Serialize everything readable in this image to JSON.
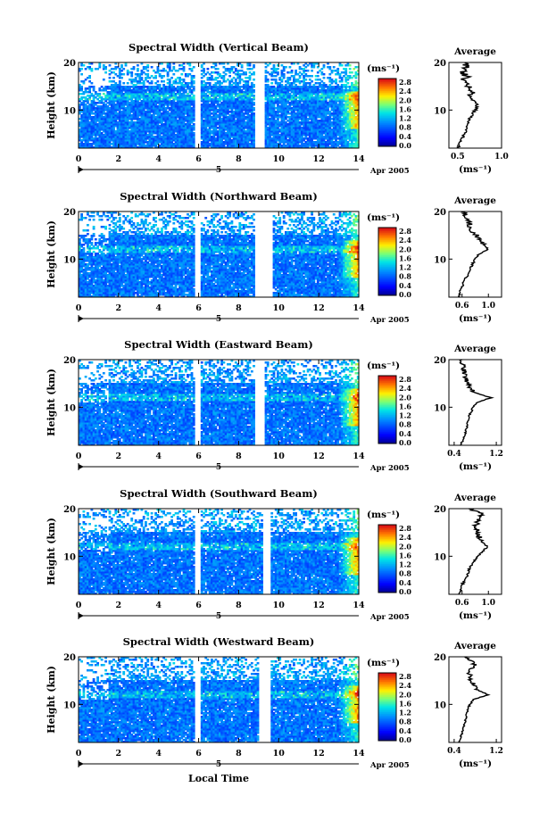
{
  "chart_data": [
    {
      "type": "heatmap",
      "title": "Spectral Width (Vertical Beam)",
      "ylabel": "Height (km)",
      "xlabel": "",
      "xlim": [
        0,
        14
      ],
      "ylim": [
        2,
        20
      ],
      "xticks": [
        "0",
        "2",
        "4",
        "6",
        "8",
        "10",
        "12",
        "14"
      ],
      "yticks": [
        "10",
        "20"
      ],
      "date_label": "Apr 2005",
      "date_marker": "5",
      "colorbar": {
        "unit": "(ms⁻¹)",
        "ticks": [
          "0.0",
          "0.4",
          "0.8",
          "1.2",
          "1.6",
          "2.0",
          "2.4",
          "2.8"
        ],
        "range": [
          0,
          3.0
        ]
      },
      "gaps": [
        [
          5.8,
          6.1
        ],
        [
          8.8,
          9.3
        ]
      ],
      "tropopause_km": 13,
      "average": {
        "title": "Average",
        "xlabel": "(ms⁻¹)",
        "xticks": [
          "0.5",
          "1.0"
        ],
        "xlim": [
          0.4,
          1.0
        ],
        "profile": [
          [
            2,
            0.5
          ],
          [
            3,
            0.52
          ],
          [
            4,
            0.55
          ],
          [
            5,
            0.58
          ],
          [
            6,
            0.6
          ],
          [
            7,
            0.62
          ],
          [
            8,
            0.63
          ],
          [
            9,
            0.66
          ],
          [
            10,
            0.7
          ],
          [
            11,
            0.72
          ],
          [
            12,
            0.68
          ],
          [
            13,
            0.64
          ],
          [
            14,
            0.66
          ],
          [
            15,
            0.62
          ],
          [
            16,
            0.56
          ],
          [
            17,
            0.6
          ],
          [
            18,
            0.55
          ],
          [
            19,
            0.6
          ],
          [
            20,
            0.58
          ]
        ]
      }
    },
    {
      "type": "heatmap",
      "title": "Spectral Width (Northward Beam)",
      "ylabel": "Height (km)",
      "xlabel": "",
      "xlim": [
        0,
        14
      ],
      "ylim": [
        2,
        20
      ],
      "xticks": [
        "0",
        "2",
        "4",
        "6",
        "8",
        "10",
        "12",
        "14"
      ],
      "yticks": [
        "10",
        "20"
      ],
      "date_label": "Apr 2005",
      "date_marker": "5",
      "colorbar": {
        "unit": "(ms⁻¹)",
        "ticks": [
          "0.0",
          "0.4",
          "0.8",
          "1.2",
          "1.6",
          "2.0",
          "2.4",
          "2.8"
        ],
        "range": [
          0,
          3.0
        ]
      },
      "gaps": [
        [
          5.8,
          6.1
        ],
        [
          8.8,
          9.7
        ]
      ],
      "tropopause_km": 12,
      "average": {
        "title": "Average",
        "xlabel": "(ms⁻¹)",
        "xticks": [
          "0.6",
          "1.0"
        ],
        "xlim": [
          0.4,
          1.2
        ],
        "profile": [
          [
            2,
            0.55
          ],
          [
            3,
            0.56
          ],
          [
            4,
            0.6
          ],
          [
            5,
            0.62
          ],
          [
            6,
            0.66
          ],
          [
            7,
            0.7
          ],
          [
            8,
            0.72
          ],
          [
            9,
            0.76
          ],
          [
            10,
            0.8
          ],
          [
            11,
            0.86
          ],
          [
            12,
            1.0
          ],
          [
            13,
            0.92
          ],
          [
            14,
            0.86
          ],
          [
            15,
            0.82
          ],
          [
            16,
            0.74
          ],
          [
            17,
            0.72
          ],
          [
            18,
            0.7
          ],
          [
            19,
            0.66
          ],
          [
            20,
            0.64
          ]
        ]
      }
    },
    {
      "type": "heatmap",
      "title": "Spectral Width (Eastward Beam)",
      "ylabel": "Height (km)",
      "xlabel": "",
      "xlim": [
        0,
        14
      ],
      "ylim": [
        2,
        20
      ],
      "xticks": [
        "0",
        "2",
        "4",
        "6",
        "8",
        "10",
        "12",
        "14"
      ],
      "yticks": [
        "10",
        "20"
      ],
      "date_label": "Apr 2005",
      "date_marker": "5",
      "colorbar": {
        "unit": "(ms⁻¹)",
        "ticks": [
          "0.0",
          "0.4",
          "0.8",
          "1.2",
          "1.6",
          "2.0",
          "2.4",
          "2.8"
        ],
        "range": [
          0,
          3.0
        ]
      },
      "gaps": [
        [
          5.8,
          6.1
        ],
        [
          8.8,
          9.3
        ]
      ],
      "tropopause_km": 12,
      "average": {
        "title": "Average",
        "xlabel": "(ms⁻¹)",
        "xticks": [
          "0.4",
          "1.2"
        ],
        "xlim": [
          0.3,
          1.3
        ],
        "profile": [
          [
            2,
            0.52
          ],
          [
            3,
            0.56
          ],
          [
            4,
            0.6
          ],
          [
            5,
            0.62
          ],
          [
            6,
            0.64
          ],
          [
            7,
            0.66
          ],
          [
            8,
            0.68
          ],
          [
            9,
            0.72
          ],
          [
            10,
            0.76
          ],
          [
            11,
            0.84
          ],
          [
            12,
            1.1
          ],
          [
            13,
            0.8
          ],
          [
            14,
            0.7
          ],
          [
            15,
            0.66
          ],
          [
            16,
            0.62
          ],
          [
            17,
            0.6
          ],
          [
            18,
            0.58
          ],
          [
            19,
            0.56
          ],
          [
            20,
            0.55
          ]
        ]
      }
    },
    {
      "type": "heatmap",
      "title": "Spectral Width (Southward Beam)",
      "ylabel": "Height (km)",
      "xlabel": "",
      "xlim": [
        0,
        14
      ],
      "ylim": [
        2,
        20
      ],
      "xticks": [
        "0",
        "2",
        "4",
        "6",
        "8",
        "10",
        "12",
        "14"
      ],
      "yticks": [
        "10",
        "20"
      ],
      "date_label": "Apr 2005",
      "date_marker": "5",
      "colorbar": {
        "unit": "(ms⁻¹)",
        "ticks": [
          "0.0",
          "0.4",
          "0.8",
          "1.2",
          "1.6",
          "2.0",
          "2.4",
          "2.8"
        ],
        "range": [
          0,
          3.0
        ]
      },
      "gaps": [
        [
          5.8,
          6.1
        ],
        [
          9.2,
          9.6
        ]
      ],
      "tropopause_km": 12,
      "average": {
        "title": "Average",
        "xlabel": "(ms⁻¹)",
        "xticks": [
          "0.6",
          "1.0"
        ],
        "xlim": [
          0.4,
          1.2
        ],
        "profile": [
          [
            2,
            0.55
          ],
          [
            3,
            0.58
          ],
          [
            4,
            0.6
          ],
          [
            5,
            0.64
          ],
          [
            6,
            0.68
          ],
          [
            7,
            0.7
          ],
          [
            8,
            0.74
          ],
          [
            9,
            0.78
          ],
          [
            10,
            0.84
          ],
          [
            11,
            0.92
          ],
          [
            12,
            0.98
          ],
          [
            13,
            0.9
          ],
          [
            14,
            0.86
          ],
          [
            15,
            0.84
          ],
          [
            16,
            0.8
          ],
          [
            17,
            0.82
          ],
          [
            18,
            0.86
          ],
          [
            19,
            0.9
          ],
          [
            20,
            0.7
          ]
        ]
      }
    },
    {
      "type": "heatmap",
      "title": "Spectral Width (Westward Beam)",
      "ylabel": "Height (km)",
      "xlabel": "Local Time",
      "xlim": [
        0,
        14
      ],
      "ylim": [
        2,
        20
      ],
      "xticks": [
        "0",
        "2",
        "4",
        "6",
        "8",
        "10",
        "12",
        "14"
      ],
      "yticks": [
        "10",
        "20"
      ],
      "date_label": "Apr 2005",
      "date_marker": "5",
      "colorbar": {
        "unit": "(ms⁻¹)",
        "ticks": [
          "0.0",
          "0.4",
          "0.8",
          "1.2",
          "1.6",
          "2.0",
          "2.4",
          "2.8"
        ],
        "range": [
          0,
          3.0
        ]
      },
      "gaps": [
        [
          5.8,
          6.1
        ],
        [
          9.0,
          9.6
        ]
      ],
      "tropopause_km": 12,
      "average": {
        "title": "Average",
        "xlabel": "(ms⁻¹)",
        "xticks": [
          "0.4",
          "1.2"
        ],
        "xlim": [
          0.3,
          1.3
        ],
        "profile": [
          [
            2,
            0.5
          ],
          [
            3,
            0.52
          ],
          [
            4,
            0.55
          ],
          [
            5,
            0.58
          ],
          [
            6,
            0.6
          ],
          [
            7,
            0.62
          ],
          [
            8,
            0.64
          ],
          [
            9,
            0.66
          ],
          [
            10,
            0.7
          ],
          [
            11,
            0.76
          ],
          [
            12,
            1.05
          ],
          [
            13,
            0.85
          ],
          [
            14,
            0.78
          ],
          [
            15,
            0.72
          ],
          [
            16,
            0.7
          ],
          [
            17,
            0.68
          ],
          [
            18,
            0.8
          ],
          [
            19,
            0.75
          ],
          [
            20,
            0.6
          ]
        ]
      }
    }
  ]
}
